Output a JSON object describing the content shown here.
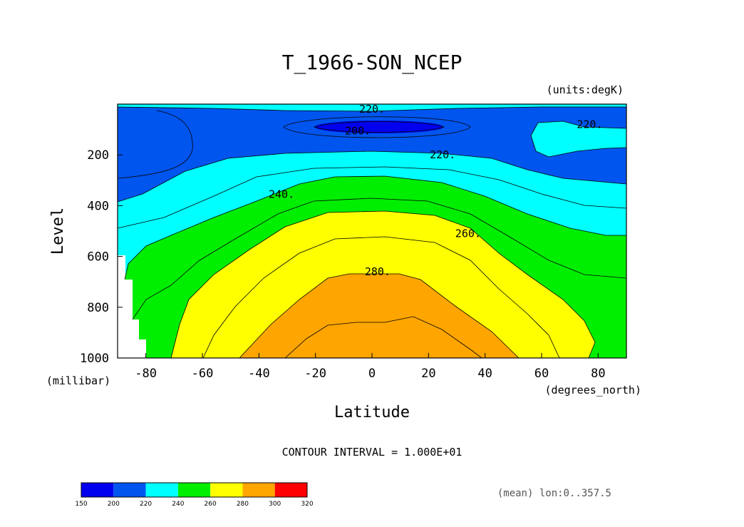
{
  "chart_data": {
    "type": "contour",
    "title": "T_1966-SON_NCEP",
    "units_label": "(units:degK)",
    "xlabel": "Latitude",
    "ylabel": "Level",
    "x_units": "(degrees_north)",
    "y_units": "(millibar)",
    "xlim": [
      -90,
      90
    ],
    "ylim": [
      1000,
      0
    ],
    "x_ticks": [
      "-80",
      "-60",
      "-40",
      "-20",
      "0",
      "20",
      "40",
      "60",
      "80"
    ],
    "y_ticks": [
      "200",
      "400",
      "600",
      "800",
      "1000"
    ],
    "contour_interval_text": "CONTOUR INTERVAL = 1.000E+01",
    "footer_note": "(mean) lon:0..357.5",
    "colorbar": {
      "ticks": [
        "150",
        "200",
        "220",
        "240",
        "260",
        "280",
        "300",
        "320"
      ],
      "colors": [
        "#0000ee",
        "#0055ee",
        "#00ffff",
        "#00ee00",
        "#ffff00",
        "#ffa500",
        "#ff0000"
      ]
    },
    "contour_labels": [
      {
        "text": "220.",
        "lat": 0,
        "lev": 20
      },
      {
        "text": "200.",
        "lat": -5,
        "lev": 105
      },
      {
        "text": "220.",
        "lat": 77,
        "lev": 80
      },
      {
        "text": "220.",
        "lat": 25,
        "lev": 200
      },
      {
        "text": "240.",
        "lat": -32,
        "lev": 355
      },
      {
        "text": "260.",
        "lat": 34,
        "lev": 510
      },
      {
        "text": "280.",
        "lat": 2,
        "lev": 660
      }
    ]
  }
}
